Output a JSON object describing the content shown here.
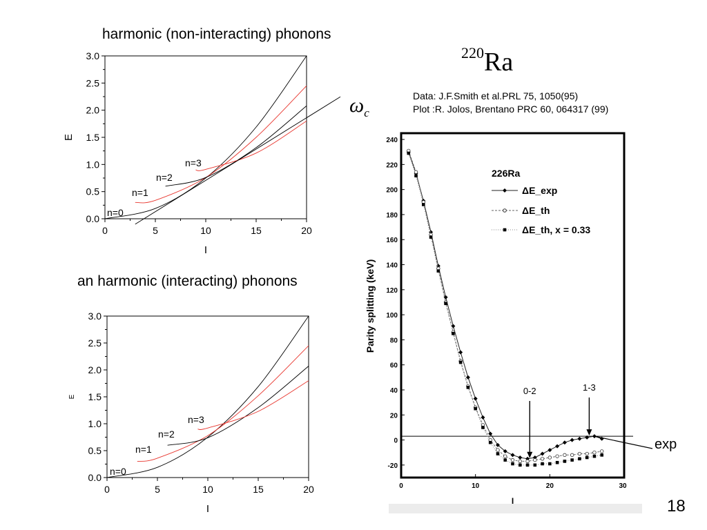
{
  "slide": {
    "page_number": "18",
    "isotope_mass": "220",
    "isotope_symbol": "Ra",
    "omega_symbol": "ω",
    "omega_sub": "c",
    "credit_data": "Data: J.F.Smith et al.PRL 75, 1050(95)",
    "credit_plot": "Plot :R. Jolos, Brentano PRC 60, 064317 (99)",
    "exp_label": "exp"
  },
  "chart_data": [
    {
      "type": "line",
      "title": "harmonic (non-interacting) phonons",
      "xlabel": "I",
      "ylabel": "E",
      "xlim": [
        0,
        20
      ],
      "ylim": [
        0,
        3
      ],
      "xticks": [
        "0",
        "5",
        "10",
        "15",
        "20"
      ],
      "yticks": [
        "0.0",
        "0.5",
        "1.0",
        "1.5",
        "2.0",
        "2.5",
        "3.0"
      ],
      "curve_labels": [
        "n=0",
        "n=1",
        "n=2",
        "n=3"
      ],
      "series": [
        {
          "color": "#000000",
          "x": [
            0,
            5,
            10,
            15,
            20
          ],
          "values": [
            0.0,
            0.19,
            0.75,
            1.69,
            3.0
          ]
        },
        {
          "color": "#e8342c",
          "x": [
            3,
            5,
            10,
            15,
            20
          ],
          "values": [
            0.3,
            0.34,
            0.76,
            1.5,
            2.45
          ]
        },
        {
          "color": "#000000",
          "x": [
            6,
            10,
            15,
            20
          ],
          "values": [
            0.6,
            0.76,
            1.31,
            2.08
          ]
        },
        {
          "color": "#e8342c",
          "x": [
            9,
            10,
            15,
            20
          ],
          "values": [
            0.9,
            0.91,
            1.21,
            1.8
          ]
        },
        {
          "color": "#000000",
          "x": [
            3,
            20
          ],
          "values": [
            -0.1,
            1.86
          ]
        }
      ]
    },
    {
      "type": "line",
      "title": "an harmonic (interacting) phonons",
      "xlabel": "I",
      "ylabel": "E",
      "xlim": [
        0,
        20
      ],
      "ylim": [
        0,
        3
      ],
      "xticks": [
        "0",
        "5",
        "10",
        "15",
        "20"
      ],
      "yticks": [
        "0.0",
        "0.5",
        "1.0",
        "1.5",
        "2.0",
        "2.5",
        "3.0"
      ],
      "curve_labels": [
        "n=0",
        "n=1",
        "n=2",
        "n=3"
      ],
      "series": [
        {
          "color": "#000000",
          "x": [
            0,
            5,
            10,
            15,
            20
          ],
          "values": [
            0.0,
            0.19,
            0.75,
            1.69,
            3.0
          ]
        },
        {
          "color": "#e8342c",
          "x": [
            3,
            5,
            10,
            15,
            20
          ],
          "values": [
            0.3,
            0.36,
            0.78,
            1.52,
            2.45
          ]
        },
        {
          "color": "#000000",
          "x": [
            6,
            10,
            15,
            20
          ],
          "values": [
            0.6,
            0.74,
            1.3,
            2.07
          ]
        },
        {
          "color": "#e8342c",
          "x": [
            9,
            10,
            15,
            20
          ],
          "values": [
            0.9,
            0.92,
            1.23,
            1.8
          ]
        }
      ]
    },
    {
      "type": "line",
      "title": "",
      "xlabel": "I",
      "ylabel": "Parity splitting (keV)",
      "xlim": [
        0,
        30
      ],
      "ylim": [
        -30,
        245
      ],
      "xticks": [
        "0",
        "10",
        "20",
        "30"
      ],
      "yticks": [
        "-20",
        "0",
        "20",
        "40",
        "60",
        "80",
        "100",
        "120",
        "140",
        "160",
        "180",
        "200",
        "220",
        "240"
      ],
      "inset_label": "226Ra",
      "annotations": [
        {
          "text": "0-2",
          "x": 17.3,
          "y": -15
        },
        {
          "text": "1-3",
          "x": 25.3,
          "y": 3
        }
      ],
      "reference_line": {
        "y": 3
      },
      "series": [
        {
          "name": "ΔE_exp",
          "marker": "diamond",
          "x": [
            1,
            2,
            3,
            4,
            5,
            6,
            7,
            8,
            9,
            10,
            11,
            12,
            13,
            14,
            15,
            16,
            17,
            18,
            19,
            20,
            21,
            22,
            23,
            24,
            25,
            26,
            27
          ],
          "values": [
            230,
            213,
            191,
            166,
            139,
            114,
            91,
            70,
            50,
            33,
            18,
            5,
            -4,
            -9,
            -12,
            -14,
            -15,
            -14,
            -11,
            -8,
            -5,
            -2,
            0,
            1,
            2,
            3,
            1
          ]
        },
        {
          "name": "ΔE_th",
          "marker": "open-circle",
          "x": [
            1,
            2,
            3,
            4,
            5,
            6,
            7,
            8,
            9,
            10,
            11,
            12,
            13,
            14,
            15,
            16,
            17,
            18,
            19,
            20,
            21,
            22,
            23,
            24,
            25,
            26,
            27
          ],
          "values": [
            231,
            214,
            190,
            164,
            137,
            110,
            86,
            63,
            43,
            26,
            12,
            0,
            -8,
            -13,
            -16,
            -17,
            -17,
            -16,
            -15,
            -14,
            -13,
            -12,
            -12,
            -11,
            -11,
            -10,
            -9
          ]
        },
        {
          "name": "ΔE_th, x = 0.33",
          "marker": "square",
          "x": [
            1,
            2,
            3,
            4,
            5,
            6,
            7,
            8,
            9,
            10,
            11,
            12,
            13,
            14,
            15,
            16,
            17,
            18,
            19,
            20,
            21,
            22,
            23,
            24,
            25,
            26,
            27
          ],
          "values": [
            229,
            211,
            188,
            162,
            135,
            109,
            85,
            62,
            42,
            25,
            10,
            -2,
            -11,
            -16,
            -19,
            -20,
            -20,
            -20,
            -19,
            -19,
            -18,
            -17,
            -16,
            -15,
            -14,
            -13,
            -12
          ]
        }
      ]
    }
  ]
}
